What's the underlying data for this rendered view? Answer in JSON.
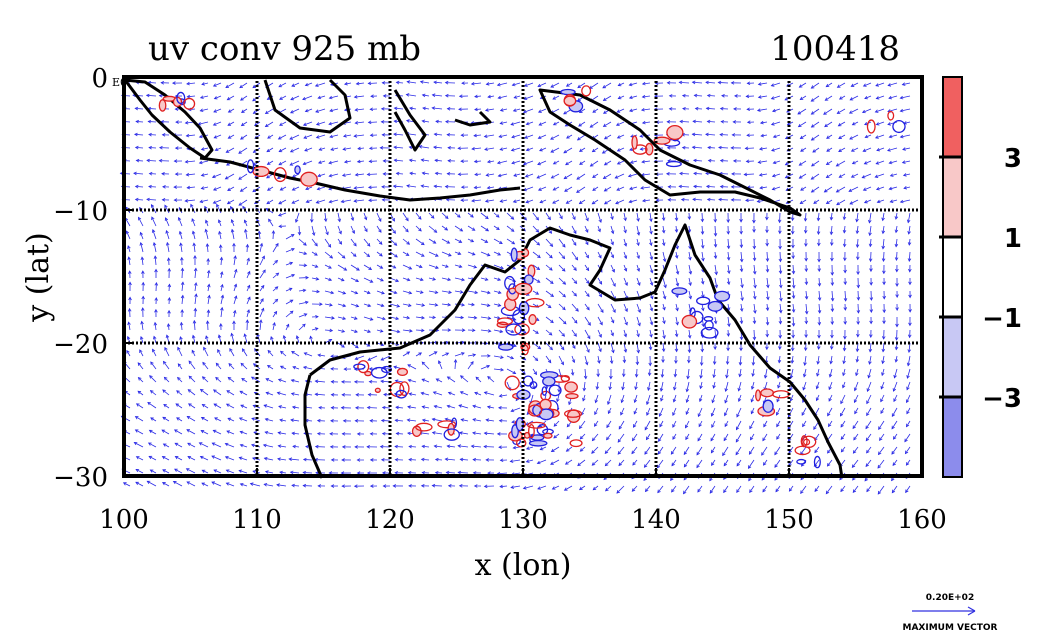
{
  "chart_data": {
    "type": "contour",
    "title": "uv conv 925 mb",
    "date_label": "100418",
    "xlabel": "x (lon)",
    "ylabel": "y (lat)",
    "xlim": [
      100,
      160
    ],
    "ylim": [
      -30,
      0
    ],
    "xticks": [
      100,
      110,
      120,
      130,
      140,
      150,
      160
    ],
    "xtick_labels": [
      "100",
      "110",
      "120",
      "130",
      "140",
      "150",
      "160"
    ],
    "yticks": [
      0,
      -10,
      -20,
      -30
    ],
    "ytick_labels": [
      "0",
      "−10",
      "−20",
      "−30"
    ],
    "y_top_exponent": "E0",
    "grid": true,
    "vectors": "uv wind field",
    "contours": "convergence (red positive, blue negative)",
    "colorbar": {
      "levels": [
        -3,
        -1,
        1,
        3
      ],
      "labels": [
        "3",
        "1",
        "−1",
        "−3"
      ],
      "colors": [
        "#ffffff",
        "#f06060",
        "#f8c8c8",
        "#ffffff",
        "#c8c8f4",
        "#8c8cec"
      ]
    },
    "reference_vector": {
      "value": "0.20E+02",
      "caption": "MAXIMUM VECTOR"
    }
  }
}
